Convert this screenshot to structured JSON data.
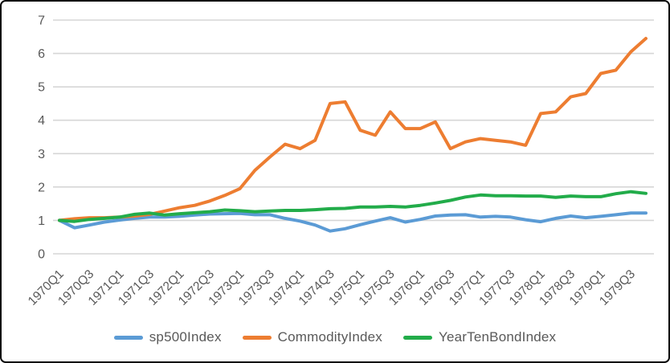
{
  "chart_data": {
    "type": "line",
    "x": [
      "1970Q1",
      "1970Q2",
      "1970Q3",
      "1970Q4",
      "1971Q1",
      "1971Q2",
      "1971Q3",
      "1971Q4",
      "1972Q1",
      "1972Q2",
      "1972Q3",
      "1972Q4",
      "1973Q1",
      "1973Q2",
      "1973Q3",
      "1973Q4",
      "1974Q1",
      "1974Q2",
      "1974Q3",
      "1974Q4",
      "1975Q1",
      "1975Q2",
      "1975Q3",
      "1975Q4",
      "1976Q1",
      "1976Q2",
      "1976Q3",
      "1976Q4",
      "1977Q1",
      "1977Q2",
      "1977Q3",
      "1977Q4",
      "1978Q1",
      "1978Q2",
      "1978Q3",
      "1978Q4",
      "1979Q1",
      "1979Q2",
      "1979Q3",
      "1979Q4"
    ],
    "x_tick_step": 2,
    "y_ticks": [
      0,
      1,
      2,
      3,
      4,
      5,
      6,
      7
    ],
    "ylim": [
      0,
      7
    ],
    "grid": true,
    "legend_position": "bottom",
    "gridline_color": "#d6d6d6",
    "axis_label_color": "#595959",
    "series": [
      {
        "name": "sp500Index",
        "color": "#5b9bd5",
        "values": [
          1.0,
          0.78,
          0.86,
          0.95,
          1.01,
          1.06,
          1.1,
          1.1,
          1.12,
          1.16,
          1.19,
          1.2,
          1.21,
          1.17,
          1.17,
          1.06,
          0.98,
          0.86,
          0.68,
          0.75,
          0.87,
          0.98,
          1.08,
          0.95,
          1.03,
          1.13,
          1.16,
          1.17,
          1.1,
          1.12,
          1.1,
          1.02,
          0.96,
          1.06,
          1.13,
          1.08,
          1.12,
          1.17,
          1.22,
          1.22
        ]
      },
      {
        "name": "CommodityIndex",
        "color": "#ed7d31",
        "values": [
          1.0,
          1.05,
          1.08,
          1.08,
          1.1,
          1.13,
          1.18,
          1.28,
          1.38,
          1.45,
          1.58,
          1.75,
          1.95,
          2.5,
          2.9,
          3.28,
          3.15,
          3.4,
          4.5,
          4.55,
          3.7,
          3.55,
          4.25,
          3.75,
          3.75,
          3.95,
          3.15,
          3.35,
          3.45,
          3.4,
          3.35,
          3.25,
          4.2,
          4.25,
          4.7,
          4.8,
          5.4,
          5.5,
          6.05,
          6.45
        ]
      },
      {
        "name": "YearTenBondIndex",
        "color": "#22ac4a",
        "values": [
          1.0,
          0.97,
          1.03,
          1.06,
          1.1,
          1.18,
          1.22,
          1.16,
          1.2,
          1.23,
          1.26,
          1.31,
          1.29,
          1.26,
          1.28,
          1.3,
          1.3,
          1.32,
          1.35,
          1.36,
          1.4,
          1.4,
          1.42,
          1.4,
          1.45,
          1.52,
          1.6,
          1.7,
          1.76,
          1.74,
          1.74,
          1.73,
          1.73,
          1.69,
          1.73,
          1.71,
          1.71,
          1.8,
          1.86,
          1.81
        ]
      }
    ]
  }
}
